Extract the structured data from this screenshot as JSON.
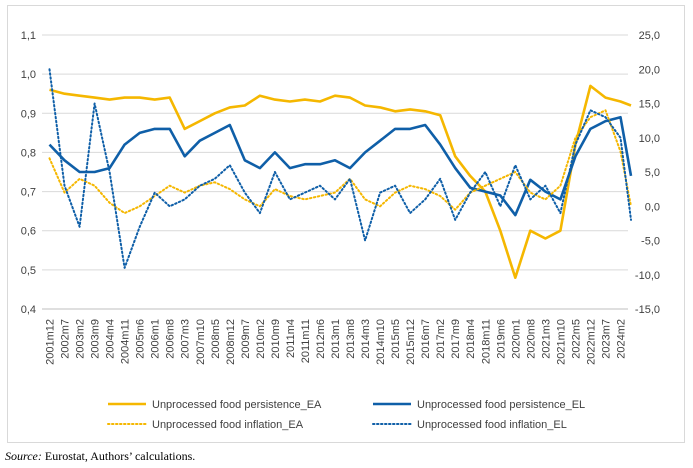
{
  "chart_data": {
    "type": "line",
    "x_labels": [
      "2001m12",
      "2002m7",
      "2003m2",
      "2003m9",
      "2004m4",
      "2004m11",
      "2005m6",
      "2006m1",
      "2006m8",
      "2007m3",
      "2007m10",
      "2008m5",
      "2008m12",
      "2009m7",
      "2010m2",
      "2010m9",
      "2011m4",
      "2011m11",
      "2012m6",
      "2013m1",
      "2013m8",
      "2014m3",
      "2014m10",
      "2015m5",
      "2015m12",
      "2016m7",
      "2017m2",
      "2017m9",
      "2018m4",
      "2018m11",
      "2019m6",
      "2020m1",
      "2020m8",
      "2021m3",
      "2021m10",
      "2022m5",
      "2022m12",
      "2023m7",
      "2024m2"
    ],
    "y_left": {
      "min": 0.4,
      "max": 1.1,
      "step": 0.1,
      "tick_labels": [
        "0,4",
        "0,5",
        "0,6",
        "0,7",
        "0,8",
        "0,9",
        "1,0",
        "1,1"
      ]
    },
    "y_right": {
      "min": -15,
      "max": 25,
      "step": 5,
      "tick_labels": [
        "-15,0",
        "-10,0",
        "-5,0",
        "0,0",
        "5,0",
        "10,0",
        "15,0",
        "20,0",
        "25,0"
      ]
    },
    "grid": "horizontal",
    "legend_position": "bottom",
    "series": [
      {
        "name": "Unprocessed food persistence_EA",
        "axis": "left",
        "style": "solid",
        "color": "#f5b700",
        "points": [
          [
            0,
            0.96
          ],
          [
            1,
            0.95
          ],
          [
            2,
            0.945
          ],
          [
            3,
            0.94
          ],
          [
            4,
            0.935
          ],
          [
            5,
            0.94
          ],
          [
            6,
            0.94
          ],
          [
            7,
            0.935
          ],
          [
            8,
            0.94
          ],
          [
            9,
            0.86
          ],
          [
            10,
            0.88
          ],
          [
            11,
            0.9
          ],
          [
            12,
            0.915
          ],
          [
            13,
            0.92
          ],
          [
            14,
            0.945
          ],
          [
            15,
            0.935
          ],
          [
            16,
            0.93
          ],
          [
            17,
            0.935
          ],
          [
            18,
            0.93
          ],
          [
            19,
            0.945
          ],
          [
            20,
            0.94
          ],
          [
            21,
            0.92
          ],
          [
            22,
            0.915
          ],
          [
            23,
            0.905
          ],
          [
            24,
            0.91
          ],
          [
            25,
            0.905
          ],
          [
            26,
            0.895
          ],
          [
            27,
            0.79
          ],
          [
            28,
            0.74
          ],
          [
            29,
            0.7
          ],
          [
            30,
            0.6
          ],
          [
            31,
            0.48
          ],
          [
            32,
            0.6
          ],
          [
            33,
            0.58
          ],
          [
            34,
            0.6
          ],
          [
            35,
            0.82
          ],
          [
            36,
            0.97
          ],
          [
            37,
            0.94
          ],
          [
            38,
            0.93
          ],
          [
            38.7,
            0.92
          ]
        ]
      },
      {
        "name": "Unprocessed food persistence_EL",
        "axis": "left",
        "style": "solid",
        "color": "#0f5fa8",
        "points": [
          [
            0,
            0.82
          ],
          [
            1,
            0.78
          ],
          [
            2,
            0.75
          ],
          [
            3,
            0.75
          ],
          [
            4,
            0.76
          ],
          [
            5,
            0.82
          ],
          [
            6,
            0.85
          ],
          [
            7,
            0.86
          ],
          [
            8,
            0.86
          ],
          [
            9,
            0.79
          ],
          [
            10,
            0.83
          ],
          [
            11,
            0.85
          ],
          [
            12,
            0.87
          ],
          [
            13,
            0.78
          ],
          [
            14,
            0.76
          ],
          [
            15,
            0.8
          ],
          [
            16,
            0.76
          ],
          [
            17,
            0.77
          ],
          [
            18,
            0.77
          ],
          [
            19,
            0.78
          ],
          [
            20,
            0.76
          ],
          [
            21,
            0.8
          ],
          [
            22,
            0.83
          ],
          [
            23,
            0.86
          ],
          [
            24,
            0.86
          ],
          [
            25,
            0.87
          ],
          [
            26,
            0.82
          ],
          [
            27,
            0.76
          ],
          [
            28,
            0.71
          ],
          [
            29,
            0.7
          ],
          [
            30,
            0.69
          ],
          [
            31,
            0.64
          ],
          [
            32,
            0.73
          ],
          [
            33,
            0.7
          ],
          [
            34,
            0.68
          ],
          [
            35,
            0.79
          ],
          [
            36,
            0.86
          ],
          [
            37,
            0.88
          ],
          [
            38,
            0.89
          ],
          [
            38.7,
            0.74
          ]
        ]
      },
      {
        "name": "Unprocessed food inflation_EA",
        "axis": "right",
        "style": "dotted",
        "color": "#f5b700",
        "points": [
          [
            0,
            7
          ],
          [
            1,
            2
          ],
          [
            2,
            4
          ],
          [
            3,
            3
          ],
          [
            4,
            0.5
          ],
          [
            5,
            -1
          ],
          [
            6,
            0
          ],
          [
            7,
            1.5
          ],
          [
            8,
            3
          ],
          [
            9,
            2
          ],
          [
            10,
            3
          ],
          [
            11,
            3.5
          ],
          [
            12,
            2.5
          ],
          [
            13,
            1
          ],
          [
            14,
            0
          ],
          [
            15,
            2.5
          ],
          [
            16,
            1.5
          ],
          [
            17,
            1
          ],
          [
            18,
            1.5
          ],
          [
            19,
            2
          ],
          [
            20,
            4
          ],
          [
            21,
            1
          ],
          [
            22,
            0
          ],
          [
            23,
            2
          ],
          [
            24,
            3
          ],
          [
            25,
            2.5
          ],
          [
            26,
            1.5
          ],
          [
            27,
            -0.5
          ],
          [
            28,
            2
          ],
          [
            29,
            3
          ],
          [
            30,
            4
          ],
          [
            31,
            5
          ],
          [
            32,
            2
          ],
          [
            33,
            1
          ],
          [
            34,
            3
          ],
          [
            35,
            10
          ],
          [
            36,
            13
          ],
          [
            37,
            14
          ],
          [
            38,
            8
          ],
          [
            38.7,
            0
          ]
        ]
      },
      {
        "name": "Unprocessed food inflation_EL",
        "axis": "right",
        "style": "dotted",
        "color": "#0f5fa8",
        "points": [
          [
            0,
            20
          ],
          [
            1,
            3
          ],
          [
            2,
            -3
          ],
          [
            3,
            15
          ],
          [
            4,
            5
          ],
          [
            5,
            -9
          ],
          [
            6,
            -3
          ],
          [
            7,
            2
          ],
          [
            8,
            0
          ],
          [
            9,
            1
          ],
          [
            10,
            3
          ],
          [
            11,
            4
          ],
          [
            12,
            6
          ],
          [
            13,
            2
          ],
          [
            14,
            -1
          ],
          [
            15,
            5
          ],
          [
            16,
            1
          ],
          [
            17,
            2
          ],
          [
            18,
            3
          ],
          [
            19,
            1
          ],
          [
            20,
            4
          ],
          [
            21,
            -5
          ],
          [
            22,
            2
          ],
          [
            23,
            3
          ],
          [
            24,
            -1
          ],
          [
            25,
            1
          ],
          [
            26,
            4
          ],
          [
            27,
            -2
          ],
          [
            28,
            2
          ],
          [
            29,
            5
          ],
          [
            30,
            0
          ],
          [
            31,
            6
          ],
          [
            32,
            1
          ],
          [
            33,
            3
          ],
          [
            34,
            -1
          ],
          [
            35,
            9
          ],
          [
            36,
            14
          ],
          [
            37,
            13
          ],
          [
            38,
            10
          ],
          [
            38.7,
            -2
          ]
        ]
      }
    ]
  },
  "source": {
    "label": "Source:",
    "text": " Eurostat, Authors’ calculations."
  }
}
